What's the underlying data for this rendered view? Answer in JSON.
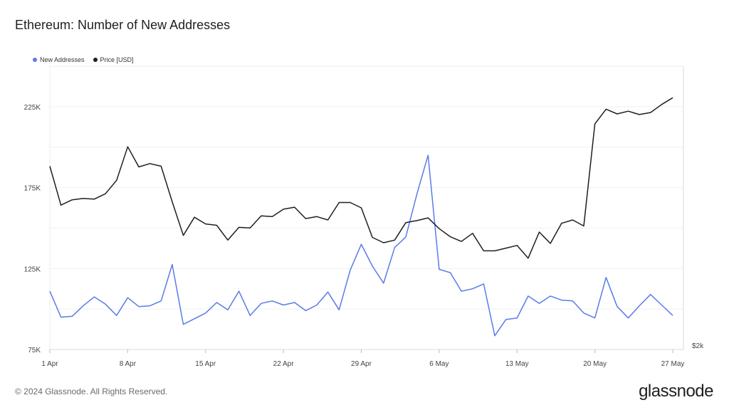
{
  "title": "Ethereum: Number of New Addresses",
  "footer": "© 2024 Glassnode. All Rights Reserved.",
  "logo": "glassnode",
  "chart_data": {
    "type": "line",
    "legend_position": "top-left",
    "grid": true,
    "x_start": "1 Apr",
    "x_tick_labels": [
      "1 Apr",
      "8 Apr",
      "15 Apr",
      "22 Apr",
      "29 Apr",
      "6 May",
      "13 May",
      "20 May",
      "27 May"
    ],
    "y_left_ticks": [
      "75K",
      "125K",
      "175K",
      "225K"
    ],
    "y_left_range": [
      75000,
      250000
    ],
    "y_right_ticks": [
      "$2k"
    ],
    "series": [
      {
        "name": "New Addresses",
        "color": "#5b7be8",
        "axis": "left",
        "values": [
          111000,
          95000,
          95500,
          102000,
          107500,
          103000,
          96000,
          107000,
          101500,
          102000,
          105000,
          127500,
          90500,
          94000,
          97500,
          104000,
          99500,
          111000,
          96000,
          103500,
          105000,
          102500,
          104000,
          99000,
          102500,
          110500,
          99500,
          124000,
          140000,
          126500,
          116000,
          138000,
          144500,
          171000,
          195000,
          124500,
          122500,
          111000,
          112500,
          115500,
          83500,
          93500,
          94500,
          108000,
          103500,
          108000,
          105500,
          105000,
          97500,
          94500,
          119500,
          101500,
          94500,
          102000,
          109000,
          102500,
          96000
        ]
      },
      {
        "name": "Price [USD]",
        "color": "#1f1f1f",
        "axis": "right",
        "values": [
          3505,
          3215,
          3255,
          3265,
          3260,
          3300,
          3400,
          3650,
          3500,
          3525,
          3505,
          3240,
          2990,
          3125,
          3075,
          3065,
          2955,
          3050,
          3045,
          3135,
          3130,
          3185,
          3200,
          3115,
          3130,
          3105,
          3235,
          3235,
          3195,
          2975,
          2935,
          2955,
          3085,
          3100,
          3120,
          3040,
          2980,
          2945,
          3005,
          2875,
          2875,
          2895,
          2915,
          2820,
          3015,
          2930,
          3080,
          3105,
          3060,
          3820,
          3930,
          3895,
          3915,
          3890,
          3905,
          3965,
          4015
        ]
      }
    ]
  }
}
